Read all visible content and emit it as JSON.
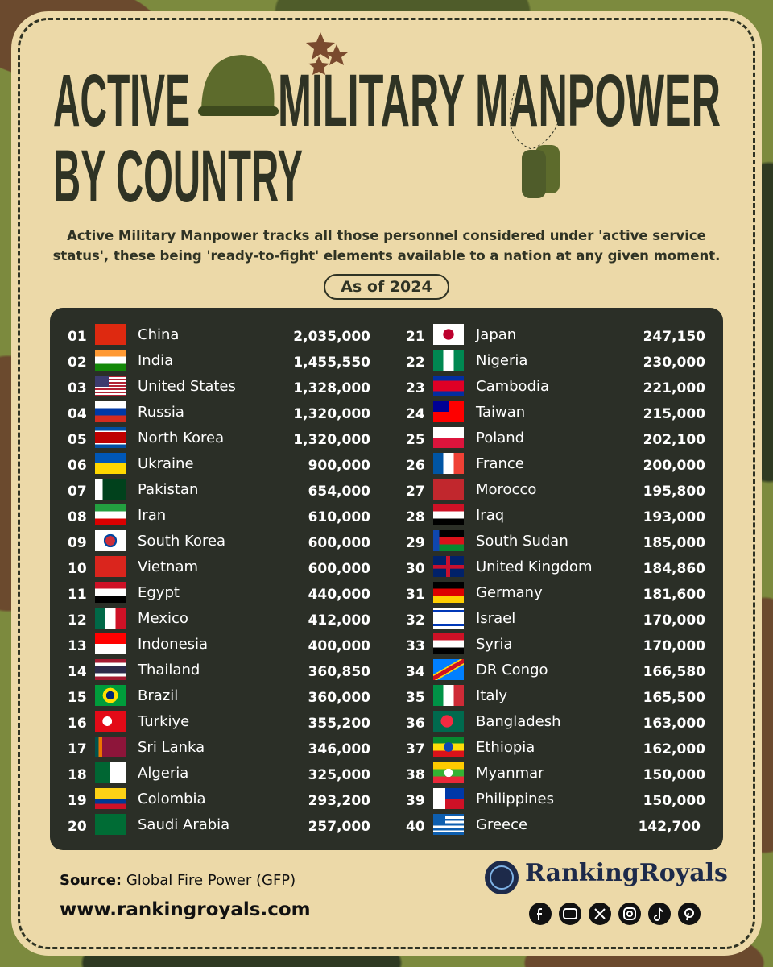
{
  "header": {
    "title_line1": "ACTIVE",
    "title_line2": "MILITARY MANPOWER",
    "title_line3": "BY COUNTRY"
  },
  "description": "Active Military Manpower tracks all those personnel considered under 'active service status', these being 'ready-to-fight' elements available to a nation at any given moment.",
  "date_badge": "As of 2024",
  "table": {
    "rows": [
      [
        "01",
        "China",
        "2,035,000"
      ],
      [
        "02",
        "India",
        "1,455,550"
      ],
      [
        "03",
        "United States",
        "1,328,000"
      ],
      [
        "04",
        "Russia",
        "1,320,000"
      ],
      [
        "05",
        "North Korea",
        "1,320,000"
      ],
      [
        "06",
        "Ukraine",
        "900,000"
      ],
      [
        "07",
        "Pakistan",
        "654,000"
      ],
      [
        "08",
        "Iran",
        "610,000"
      ],
      [
        "09",
        "South Korea",
        "600,000"
      ],
      [
        "10",
        "Vietnam",
        "600,000"
      ],
      [
        "11",
        "Egypt",
        "440,000"
      ],
      [
        "12",
        "Mexico",
        "412,000"
      ],
      [
        "13",
        "Indonesia",
        "400,000"
      ],
      [
        "14",
        "Thailand",
        "360,850"
      ],
      [
        "15",
        "Brazil",
        "360,000"
      ],
      [
        "16",
        "Turkiye",
        "355,200"
      ],
      [
        "17",
        "Sri Lanka",
        "346,000"
      ],
      [
        "18",
        "Algeria",
        "325,000"
      ],
      [
        "19",
        "Colombia",
        "293,200"
      ],
      [
        "20",
        "Saudi Arabia",
        "257,000"
      ],
      [
        "21",
        "Japan",
        "247,150"
      ],
      [
        "22",
        "Nigeria",
        "230,000"
      ],
      [
        "23",
        "Cambodia",
        "221,000"
      ],
      [
        "24",
        "Taiwan",
        "215,000"
      ],
      [
        "25",
        "Poland",
        "202,100"
      ],
      [
        "26",
        "France",
        "200,000"
      ],
      [
        "27",
        "Morocco",
        "195,800"
      ],
      [
        "28",
        "Iraq",
        "193,000"
      ],
      [
        "29",
        "South Sudan",
        "185,000"
      ],
      [
        "30",
        "United Kingdom",
        "184,860"
      ],
      [
        "31",
        "Germany",
        "181,600"
      ],
      [
        "32",
        "Israel",
        "170,000"
      ],
      [
        "33",
        "Syria",
        "170,000"
      ],
      [
        "34",
        "DR Congo",
        "166,580"
      ],
      [
        "35",
        "Italy",
        "165,500"
      ],
      [
        "36",
        "Bangladesh",
        "163,000"
      ],
      [
        "37",
        "Ethiopia",
        "162,000"
      ],
      [
        "38",
        "Myanmar",
        "150,000"
      ],
      [
        "39",
        "Philippines",
        "150,000"
      ],
      [
        "40",
        "Greece",
        "142,700"
      ]
    ]
  },
  "footer": {
    "source_label": "Source:",
    "source_text": "Global Fire Power (GFP)",
    "website": "www.rankingroyals.com",
    "brand": "RankingRoyals"
  }
}
